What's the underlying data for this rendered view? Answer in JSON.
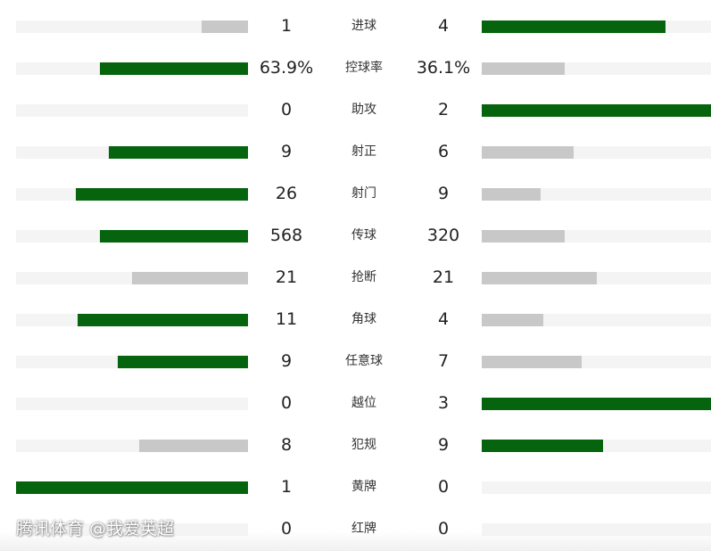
{
  "stats": [
    {
      "label": "进球",
      "home": "1",
      "away": "4",
      "home_share": 0.2,
      "away_share": 0.8,
      "home_lead": false,
      "away_lead": true
    },
    {
      "label": "控球率",
      "home": "63.9%",
      "away": "36.1%",
      "home_share": 0.639,
      "away_share": 0.361,
      "home_lead": true,
      "away_lead": false
    },
    {
      "label": "助攻",
      "home": "0",
      "away": "2",
      "home_share": 0.0,
      "away_share": 1.0,
      "home_lead": false,
      "away_lead": true
    },
    {
      "label": "射正",
      "home": "9",
      "away": "6",
      "home_share": 0.6,
      "away_share": 0.4,
      "home_lead": true,
      "away_lead": false
    },
    {
      "label": "射门",
      "home": "26",
      "away": "9",
      "home_share": 0.743,
      "away_share": 0.257,
      "home_lead": true,
      "away_lead": false
    },
    {
      "label": "传球",
      "home": "568",
      "away": "320",
      "home_share": 0.64,
      "away_share": 0.36,
      "home_lead": true,
      "away_lead": false
    },
    {
      "label": "抢断",
      "home": "21",
      "away": "21",
      "home_share": 0.5,
      "away_share": 0.5,
      "home_lead": false,
      "away_lead": false
    },
    {
      "label": "角球",
      "home": "11",
      "away": "4",
      "home_share": 0.733,
      "away_share": 0.267,
      "home_lead": true,
      "away_lead": false
    },
    {
      "label": "任意球",
      "home": "9",
      "away": "7",
      "home_share": 0.5625,
      "away_share": 0.4375,
      "home_lead": true,
      "away_lead": false
    },
    {
      "label": "越位",
      "home": "0",
      "away": "3",
      "home_share": 0.0,
      "away_share": 1.0,
      "home_lead": false,
      "away_lead": true
    },
    {
      "label": "犯规",
      "home": "8",
      "away": "9",
      "home_share": 0.47,
      "away_share": 0.53,
      "home_lead": false,
      "away_lead": true
    },
    {
      "label": "黄牌",
      "home": "1",
      "away": "0",
      "home_share": 1.0,
      "away_share": 0.0,
      "home_lead": true,
      "away_lead": false
    },
    {
      "label": "红牌",
      "home": "0",
      "away": "0",
      "home_share": 0.0,
      "away_share": 0.0,
      "home_lead": false,
      "away_lead": false
    }
  ],
  "watermark": "腾讯体育 @我爱英超",
  "colors": {
    "leading_bar": "#05640d",
    "trailing_bar": "#c8c8c8",
    "track": "#f4f4f4"
  }
}
